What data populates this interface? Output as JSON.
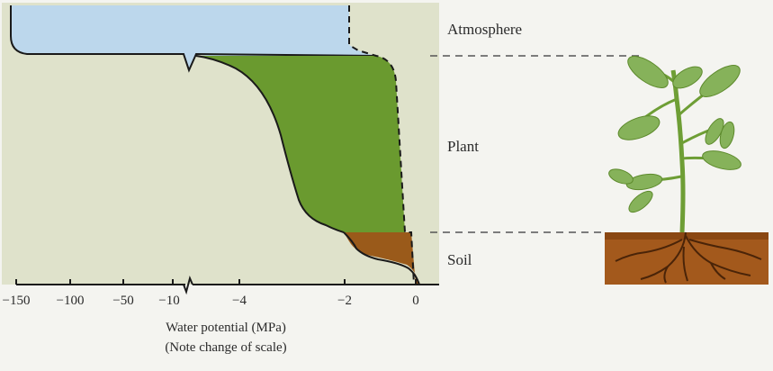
{
  "diagram": {
    "zones": {
      "atmosphere": "Atmosphere",
      "plant": "Plant",
      "soil": "Soil"
    },
    "x_axis": {
      "ticks": [
        "−150",
        "−100",
        "−50",
        "−10",
        "−4",
        "−2",
        "0"
      ],
      "title": "Water potential (MPa)",
      "subtitle": "(Note change of scale)"
    },
    "colors": {
      "background_panel": "#dfe2cb",
      "atmosphere_fill": "#bcd7ec",
      "plant_fill": "#6a9a2f",
      "soil_fill": "#9a5a1a",
      "root_fill": "#a3591c",
      "leaf_fill": "#86b25a",
      "outline": "#1a1a1a"
    }
  }
}
